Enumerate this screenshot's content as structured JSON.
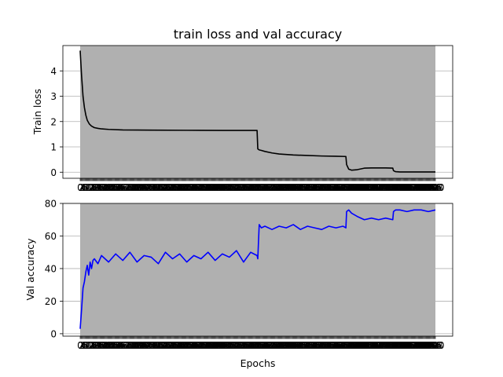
{
  "chart_data": [
    {
      "type": "line",
      "title": "train loss and val accuracy",
      "xlabel": "",
      "ylabel": "Train loss",
      "xlim": [
        0,
        500
      ],
      "ylim": [
        -0.24,
        5.0
      ],
      "yticks": [
        0,
        1,
        2,
        3,
        4
      ],
      "grid": "y",
      "background_band": {
        "x": [
          0,
          500
        ],
        "color": "#b0b0b0"
      },
      "series": [
        {
          "color": "#000000",
          "x": [
            0,
            2,
            4,
            6,
            8,
            10,
            13,
            16,
            20,
            25,
            30,
            40,
            60,
            80,
            100,
            150,
            200,
            249,
            250,
            252,
            255,
            260,
            270,
            280,
            300,
            320,
            340,
            360,
            374,
            375,
            378,
            382,
            390,
            400,
            410,
            430,
            440,
            441,
            444,
            450,
            500
          ],
          "y": [
            4.8,
            3.8,
            3.0,
            2.55,
            2.25,
            2.05,
            1.9,
            1.82,
            1.76,
            1.73,
            1.71,
            1.69,
            1.67,
            1.665,
            1.66,
            1.655,
            1.65,
            1.65,
            0.92,
            0.88,
            0.86,
            0.82,
            0.76,
            0.72,
            0.68,
            0.66,
            0.64,
            0.63,
            0.62,
            0.3,
            0.12,
            0.08,
            0.1,
            0.16,
            0.17,
            0.17,
            0.16,
            0.06,
            0.02,
            0.01,
            0.01
          ]
        }
      ]
    },
    {
      "type": "line",
      "title": "",
      "xlabel": "Epochs",
      "ylabel": "Val accuracy",
      "xlim": [
        0,
        500
      ],
      "ylim": [
        -1.5,
        80
      ],
      "yticks": [
        0,
        20,
        40,
        60,
        80
      ],
      "grid": "y",
      "background_band": {
        "x": [
          0,
          500
        ],
        "color": "#b0b0b0"
      },
      "series": [
        {
          "color": "#0000ff",
          "x": [
            0,
            2,
            4,
            6,
            8,
            10,
            12,
            14,
            16,
            18,
            20,
            25,
            30,
            40,
            50,
            60,
            70,
            80,
            90,
            100,
            110,
            120,
            130,
            140,
            150,
            160,
            170,
            180,
            190,
            200,
            210,
            220,
            230,
            240,
            249,
            250,
            252,
            255,
            260,
            270,
            280,
            290,
            300,
            310,
            320,
            330,
            340,
            350,
            360,
            370,
            374,
            375,
            378,
            382,
            390,
            400,
            410,
            420,
            430,
            440,
            441,
            444,
            450,
            460,
            470,
            480,
            490,
            500
          ],
          "y": [
            3,
            15,
            28,
            32,
            38,
            42,
            36,
            44,
            40,
            45,
            46,
            43,
            48,
            44,
            49,
            45,
            50,
            44,
            48,
            47,
            43,
            50,
            46,
            49,
            44,
            48,
            46,
            50,
            45,
            49,
            47,
            51,
            44,
            50,
            48,
            46,
            67,
            65,
            66,
            64,
            66,
            65,
            67,
            64,
            66,
            65,
            64,
            66,
            65,
            66,
            65,
            75,
            76,
            74,
            72,
            70,
            71,
            70,
            71,
            70,
            75,
            76,
            76,
            75,
            76,
            76,
            75,
            76
          ]
        }
      ]
    }
  ]
}
